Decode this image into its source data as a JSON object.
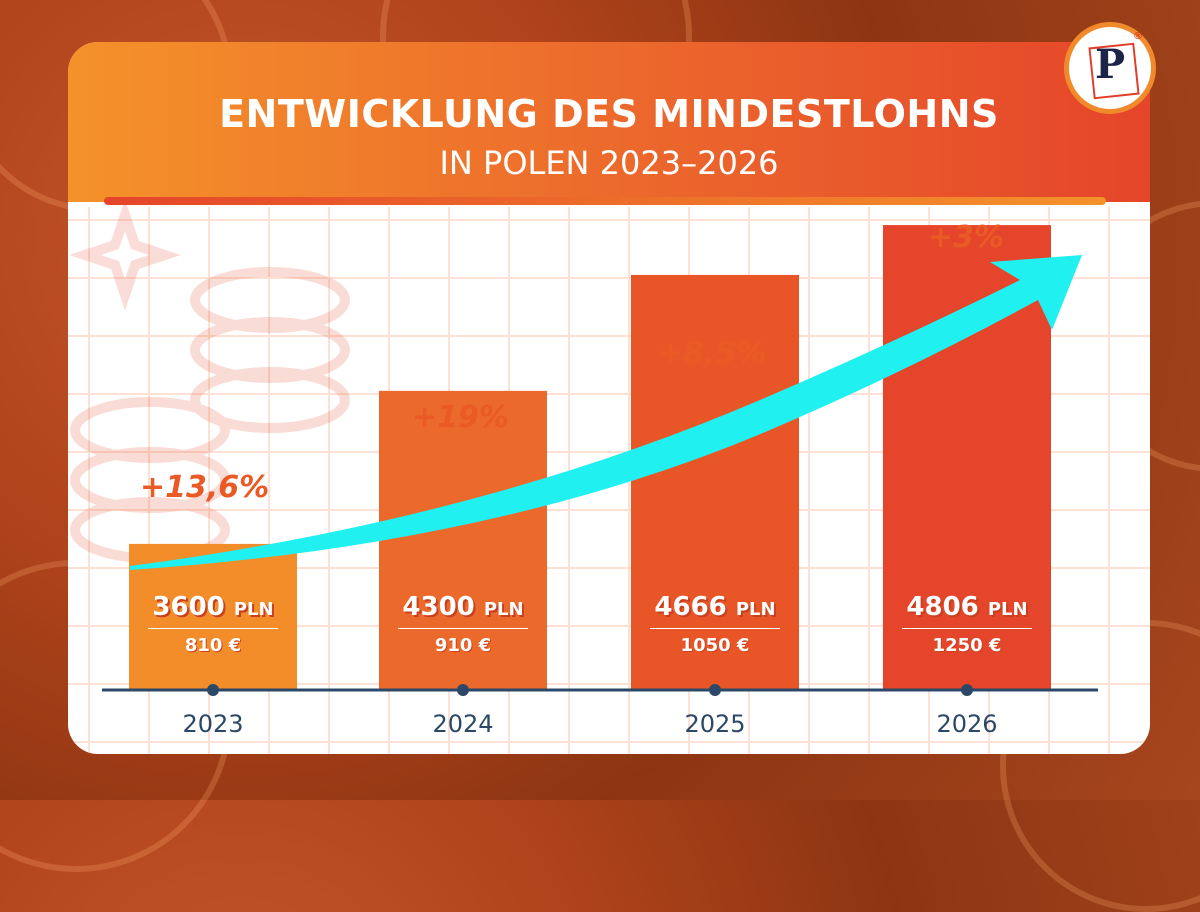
{
  "title_line1": "ENTWICKLUNG DES MINDESTLOHNS",
  "title_line2": "IN POLEN 2023–2026",
  "logo": {
    "letter": "P",
    "mark": "®"
  },
  "colors": {
    "bar2023": "#f28d2a",
    "bar2024": "#eb6a2b",
    "bar2025": "#e85628",
    "bar2026": "#e5452a",
    "arrow": "#21f0f0",
    "axis": "#2c4868",
    "pct": "#ea5a25"
  },
  "chart_data": {
    "type": "bar",
    "title": "ENTWICKLUNG DES MINDESTLOHNS IN POLEN 2023–2026",
    "xlabel": "",
    "ylabel": "",
    "categories": [
      "2023",
      "2024",
      "2025",
      "2026"
    ],
    "values": [
      3600,
      4300,
      4666,
      4806
    ],
    "unit": "PLN",
    "pln_labels": [
      "3600",
      "4300",
      "4666",
      "4806"
    ],
    "pln_unit": "PLN",
    "eur_labels": [
      "810 €",
      "910 €",
      "1050 €",
      "1250 €"
    ],
    "growth_labels": [
      "+13,6%",
      "+19%",
      "+8,5%",
      "+3%"
    ],
    "trend_arrow": true,
    "grid": true
  }
}
